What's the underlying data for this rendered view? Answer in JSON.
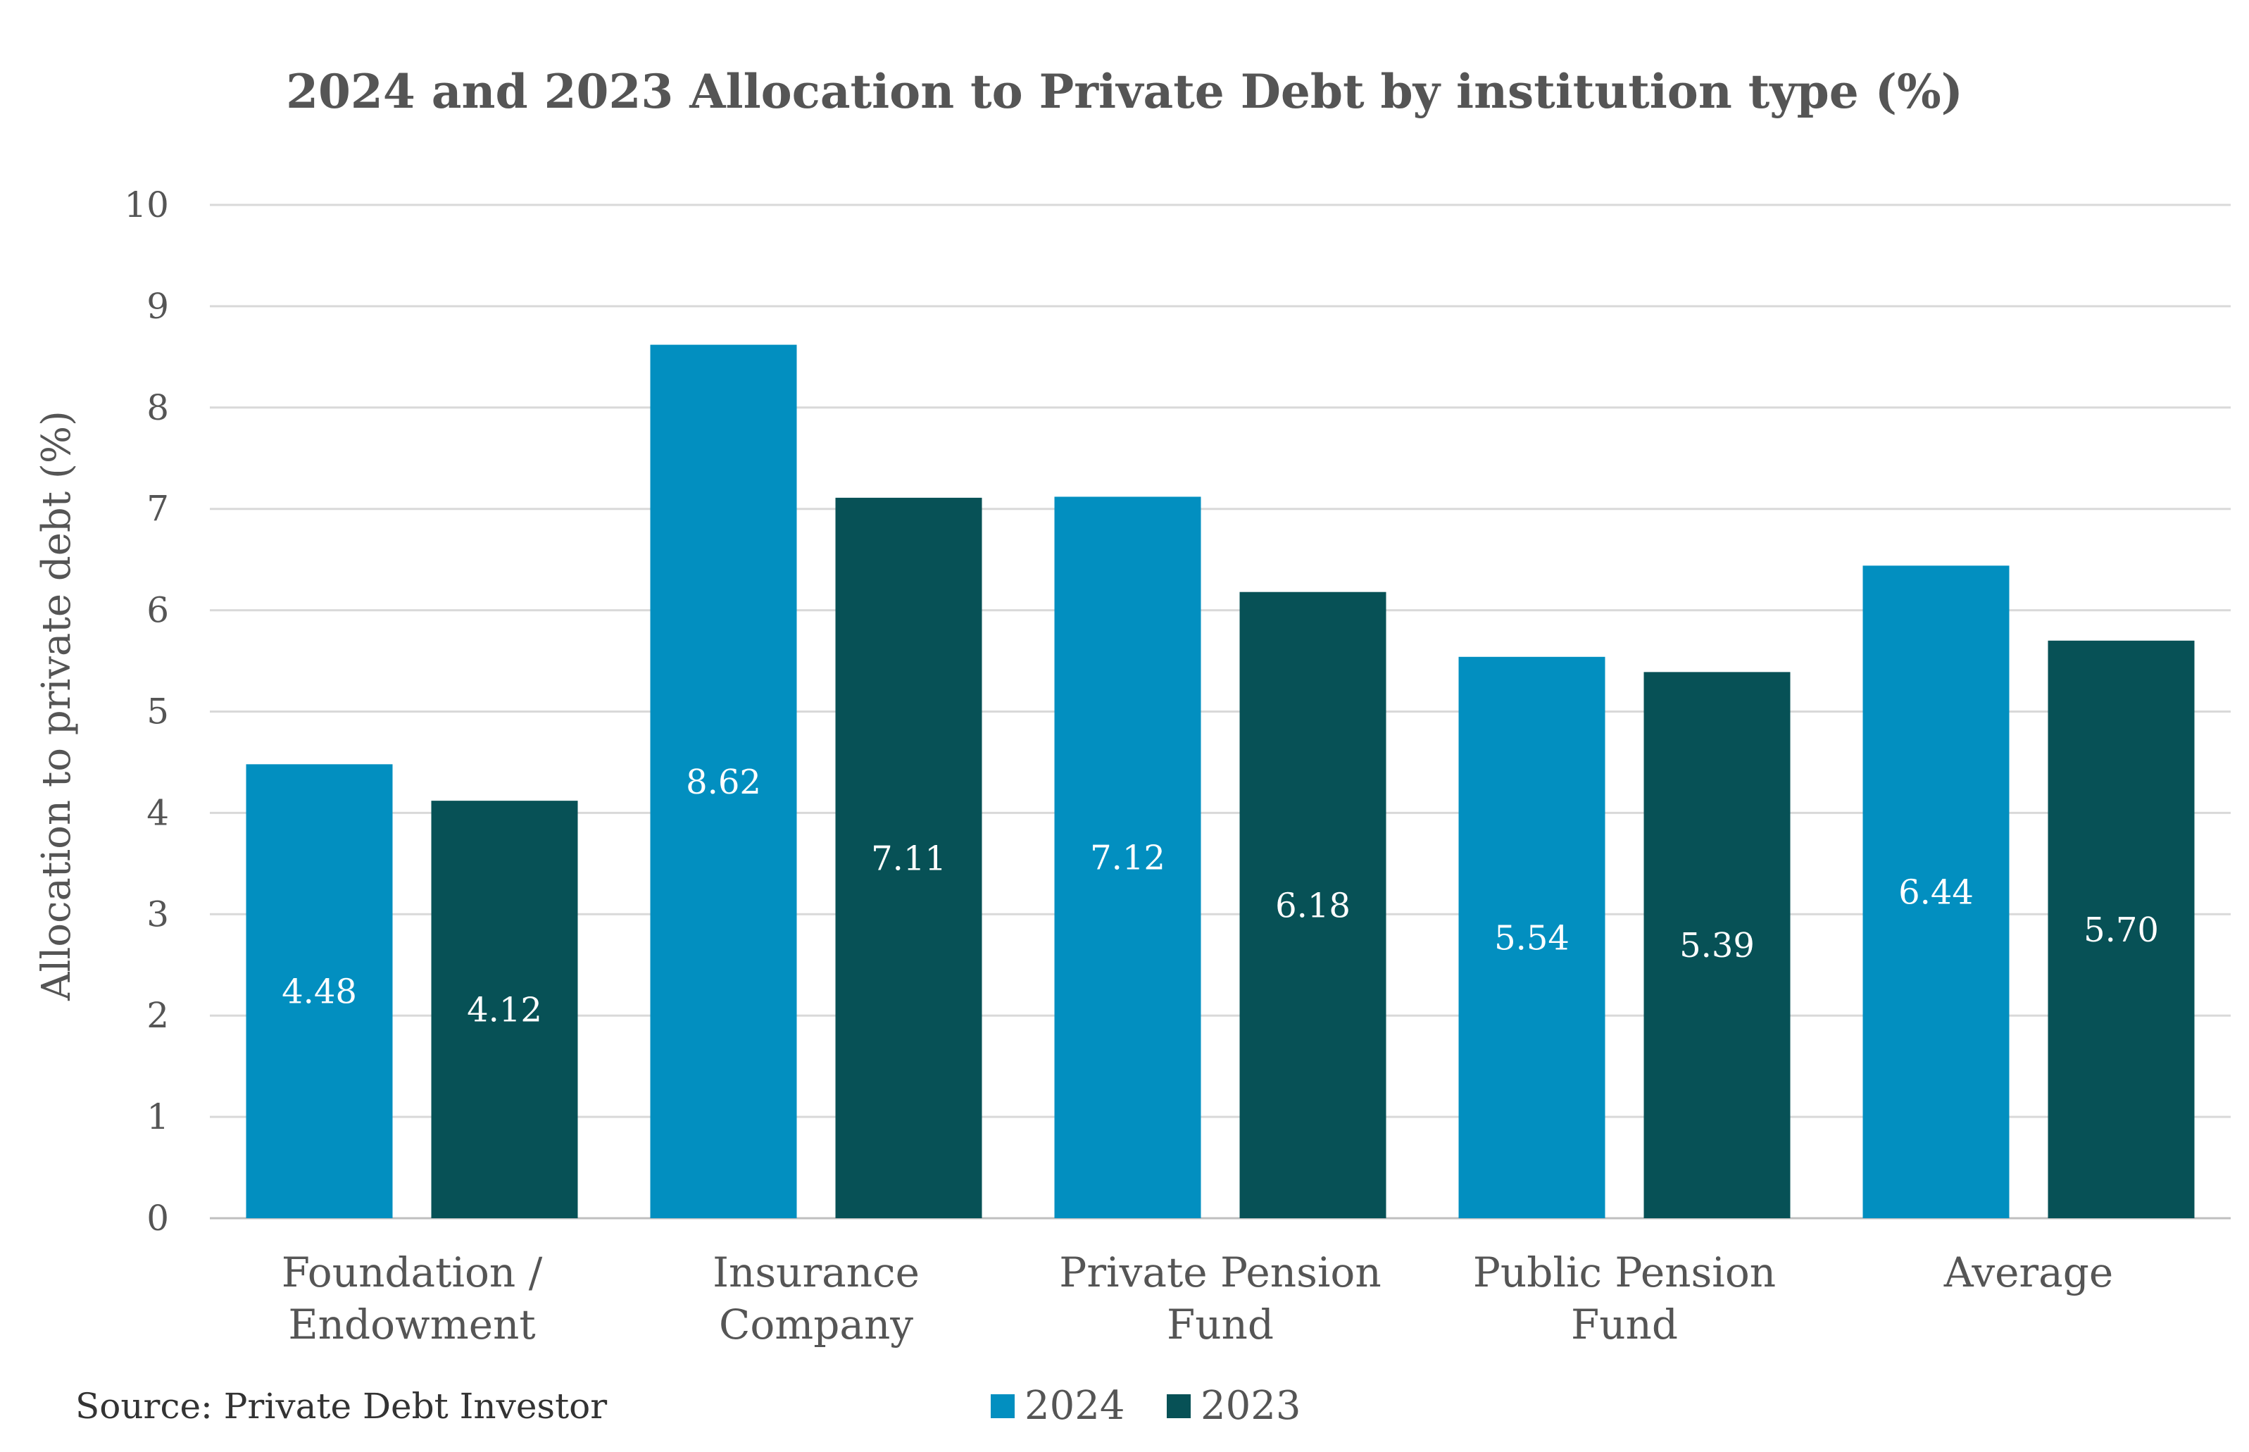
{
  "chart_data": {
    "type": "bar",
    "title": "2024 and 2023 Allocation to Private Debt by institution type (%)",
    "ylabel": "Allocation to private debt (%)",
    "xlabel": "",
    "ylim": [
      0,
      10
    ],
    "yticks": [
      "0",
      "1",
      "2",
      "3",
      "4",
      "5",
      "6",
      "7",
      "8",
      "9",
      "10"
    ],
    "grid": true,
    "legend_position": "bottom",
    "categories": [
      [
        "Foundation /",
        "Endowment"
      ],
      [
        "Insurance",
        "Company"
      ],
      [
        "Private Pension",
        "Fund"
      ],
      [
        "Public Pension",
        "Fund"
      ],
      [
        "Average"
      ]
    ],
    "series": [
      {
        "name": "2024",
        "color": "#028fc0",
        "values": [
          4.48,
          8.62,
          7.12,
          5.54,
          6.44
        ],
        "labels": [
          "4.48",
          "8.62",
          "7.12",
          "5.54",
          "6.44"
        ]
      },
      {
        "name": "2023",
        "color": "#075156",
        "values": [
          4.12,
          7.11,
          6.18,
          5.39,
          5.7
        ],
        "labels": [
          "4.12",
          "7.11",
          "6.18",
          "5.39",
          "5.70"
        ]
      }
    ]
  },
  "source": "Source: Private Debt Investor"
}
